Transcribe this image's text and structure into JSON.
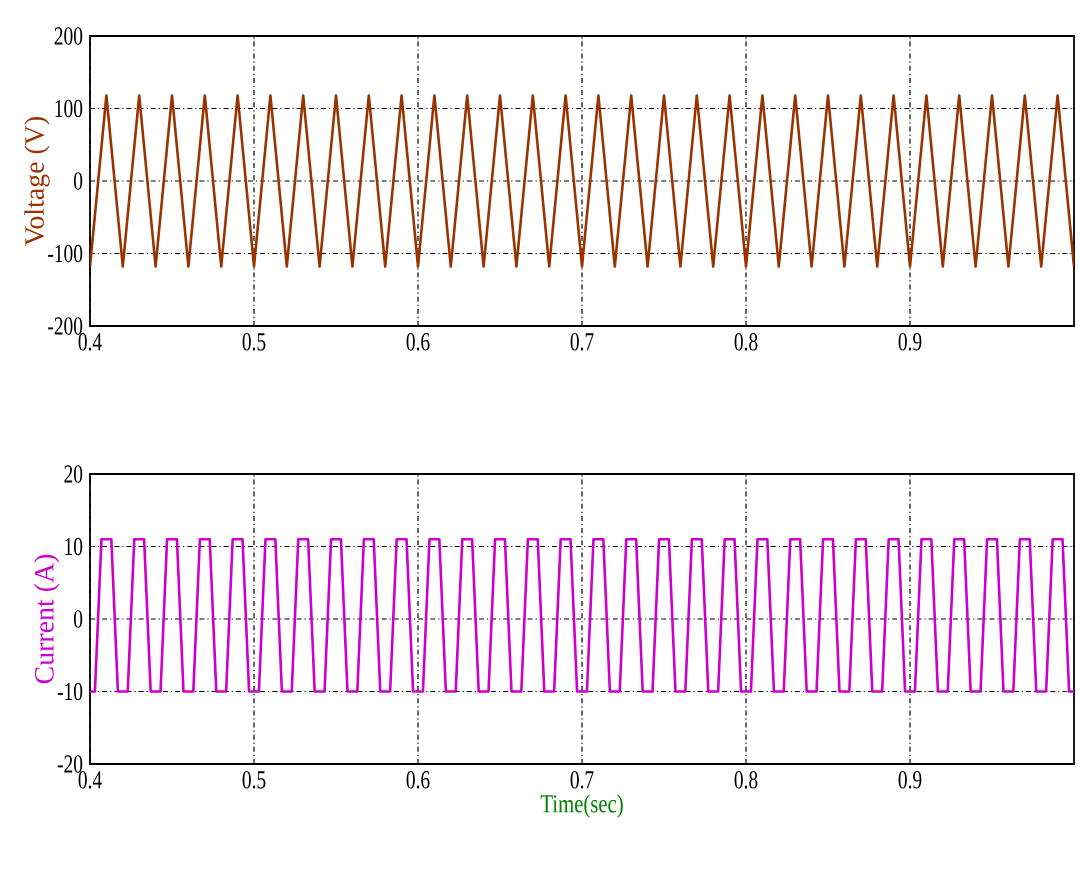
{
  "chart_data": [
    {
      "type": "line",
      "ylabel": "Voltage (V)",
      "xlim": [
        0.4,
        1.0
      ],
      "ylim": [
        -200,
        200
      ],
      "xticks": [
        0.4,
        0.5,
        0.6,
        0.7,
        0.8,
        0.9
      ],
      "yticks": [
        -200,
        -100,
        0,
        100,
        200
      ],
      "grid": true,
      "series": [
        {
          "color": "#993300",
          "x": [
            0.4,
            0.405,
            0.41,
            0.415,
            0.42,
            0.425,
            0.43,
            0.435,
            0.44,
            0.445,
            0.45,
            0.455,
            0.46,
            0.465,
            0.47,
            0.475,
            0.48,
            0.485,
            0.49,
            0.495,
            0.5,
            0.505,
            0.51,
            0.515,
            0.52,
            0.525,
            0.53,
            0.535,
            0.54,
            0.545,
            0.55,
            0.555,
            0.56,
            0.565,
            0.57,
            0.575,
            0.58,
            0.585,
            0.59,
            0.595,
            0.6,
            0.605,
            0.61,
            0.615,
            0.62,
            0.625,
            0.63,
            0.635,
            0.64,
            0.645,
            0.65,
            0.655,
            0.66,
            0.665,
            0.67,
            0.675,
            0.68,
            0.685,
            0.69,
            0.695,
            0.7,
            0.705,
            0.71,
            0.715,
            0.72,
            0.725,
            0.73,
            0.735,
            0.74,
            0.745,
            0.75,
            0.755,
            0.76,
            0.765,
            0.77,
            0.775,
            0.78,
            0.785,
            0.79,
            0.795,
            0.8,
            0.805,
            0.81,
            0.815,
            0.82,
            0.825,
            0.83,
            0.835,
            0.84,
            0.845,
            0.85,
            0.855,
            0.86,
            0.865,
            0.87,
            0.875,
            0.88,
            0.885,
            0.89,
            0.895,
            0.9,
            0.905,
            0.91,
            0.915,
            0.92,
            0.925,
            0.93,
            0.935,
            0.94,
            0.945,
            0.95,
            0.955,
            0.96,
            0.965,
            0.97,
            0.975,
            0.98,
            0.985,
            0.99,
            0.995,
            1.0
          ],
          "values": [
            -118,
            0,
            118,
            0,
            -118,
            0,
            118,
            0,
            -118,
            0,
            118,
            0,
            -118,
            0,
            118,
            0,
            -118,
            0,
            118,
            0,
            -118,
            0,
            118,
            0,
            -118,
            0,
            118,
            0,
            -118,
            0,
            118,
            0,
            -118,
            0,
            118,
            0,
            -118,
            0,
            118,
            0,
            -118,
            0,
            118,
            0,
            -118,
            0,
            118,
            0,
            -118,
            0,
            118,
            0,
            -118,
            0,
            118,
            0,
            -118,
            0,
            118,
            0,
            -118,
            0,
            118,
            0,
            -118,
            0,
            118,
            0,
            -118,
            0,
            118,
            0,
            -118,
            0,
            118,
            0,
            -118,
            0,
            118,
            0,
            -118,
            0,
            118,
            0,
            -118,
            0,
            118,
            0,
            -118,
            0,
            118,
            0,
            -118,
            0,
            118,
            0,
            -118,
            0,
            118,
            0,
            -118,
            0,
            118,
            0,
            -118,
            0,
            118,
            0,
            -118,
            0,
            118,
            0,
            -118,
            0,
            118,
            0,
            -118,
            0,
            118,
            0,
            -118
          ]
        }
      ]
    },
    {
      "type": "line",
      "ylabel": "Current (A)",
      "xlabel": "Time(sec)",
      "xlim": [
        0.4,
        1.0
      ],
      "ylim": [
        -20,
        20
      ],
      "xticks": [
        0.4,
        0.5,
        0.6,
        0.7,
        0.8,
        0.9
      ],
      "yticks": [
        -20,
        -10,
        0,
        10,
        20
      ],
      "grid": true,
      "series": [
        {
          "color": "#cc00cc",
          "x": [
            0.4,
            0.403,
            0.407,
            0.413,
            0.417,
            0.423,
            0.427,
            0.433,
            0.437,
            0.443,
            0.447,
            0.453,
            0.457,
            0.463,
            0.467,
            0.473,
            0.477,
            0.483,
            0.487,
            0.493,
            0.497,
            0.503,
            0.507,
            0.513,
            0.517,
            0.523,
            0.527,
            0.533,
            0.537,
            0.543,
            0.547,
            0.553,
            0.557,
            0.563,
            0.567,
            0.573,
            0.577,
            0.583,
            0.587,
            0.593,
            0.597,
            0.603,
            0.607,
            0.613,
            0.617,
            0.623,
            0.627,
            0.633,
            0.637,
            0.643,
            0.647,
            0.653,
            0.657,
            0.663,
            0.667,
            0.673,
            0.677,
            0.683,
            0.687,
            0.693,
            0.697,
            0.703,
            0.707,
            0.713,
            0.717,
            0.723,
            0.727,
            0.733,
            0.737,
            0.743,
            0.747,
            0.753,
            0.757,
            0.763,
            0.767,
            0.773,
            0.777,
            0.783,
            0.787,
            0.793,
            0.797,
            0.803,
            0.807,
            0.813,
            0.817,
            0.823,
            0.827,
            0.833,
            0.837,
            0.843,
            0.847,
            0.853,
            0.857,
            0.863,
            0.867,
            0.873,
            0.877,
            0.883,
            0.887,
            0.893,
            0.897,
            0.903,
            0.907,
            0.913,
            0.917,
            0.923,
            0.927,
            0.933,
            0.937,
            0.943,
            0.947,
            0.953,
            0.957,
            0.963,
            0.967,
            0.973,
            0.977,
            0.983,
            0.987,
            0.993,
            0.997,
            1.0
          ],
          "values": [
            -10,
            -10,
            11,
            11,
            -10,
            -10,
            11,
            11,
            -10,
            -10,
            11,
            11,
            -10,
            -10,
            11,
            11,
            -10,
            -10,
            11,
            11,
            -10,
            -10,
            11,
            11,
            -10,
            -10,
            11,
            11,
            -10,
            -10,
            11,
            11,
            -10,
            -10,
            11,
            11,
            -10,
            -10,
            11,
            11,
            -10,
            -10,
            11,
            11,
            -10,
            -10,
            11,
            11,
            -10,
            -10,
            11,
            11,
            -10,
            -10,
            11,
            11,
            -10,
            -10,
            11,
            11,
            -10,
            -10,
            11,
            11,
            -10,
            -10,
            11,
            11,
            -10,
            -10,
            11,
            11,
            -10,
            -10,
            11,
            11,
            -10,
            -10,
            11,
            11,
            -10,
            -10,
            11,
            11,
            -10,
            -10,
            11,
            11,
            -10,
            -10,
            11,
            11,
            -10,
            -10,
            11,
            11,
            -10,
            -10,
            11,
            11,
            -10,
            -10,
            11,
            11,
            -10,
            -10,
            11,
            11,
            -10,
            -10,
            11,
            11,
            -10,
            -10,
            11,
            11,
            -10,
            -10,
            11,
            11,
            -10,
            -10
          ]
        }
      ]
    }
  ]
}
